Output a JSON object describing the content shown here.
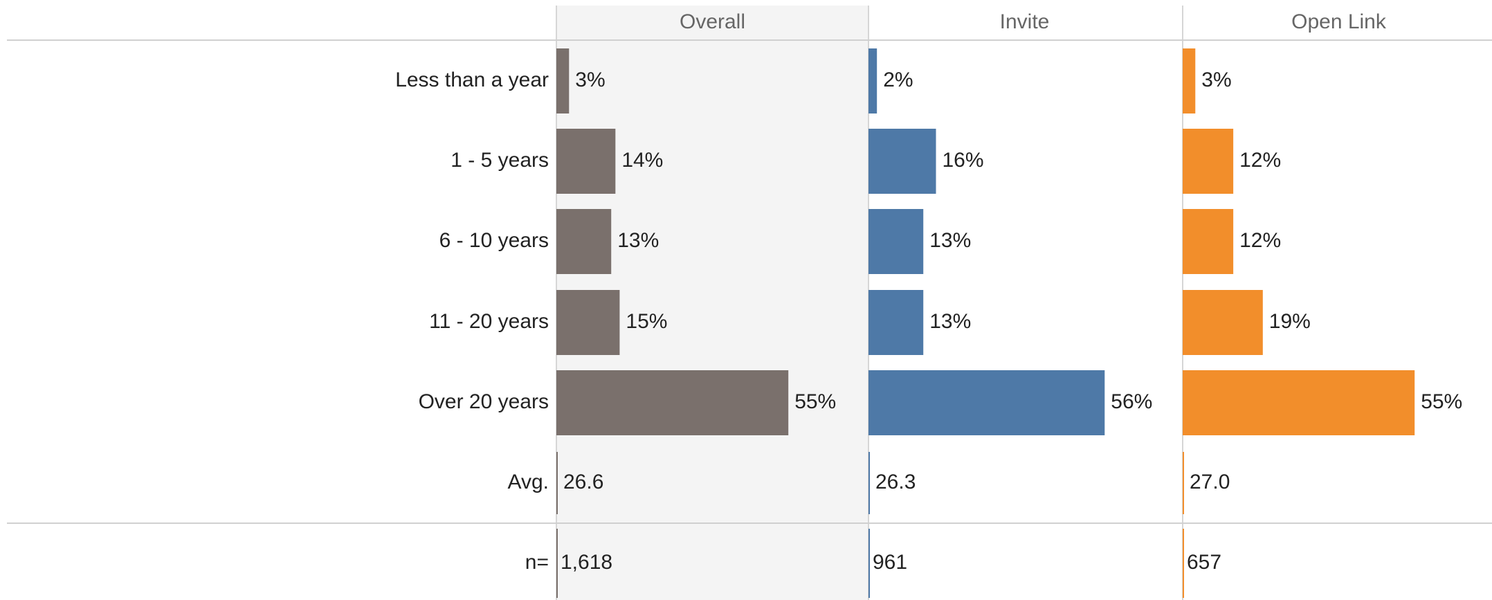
{
  "chart_data": {
    "type": "bar",
    "categories": [
      "Less than a year",
      "1 - 5 years",
      "6 - 10 years",
      "11 - 20 years",
      "Over 20 years"
    ],
    "avg_name": "Avg.",
    "n_name": "n=",
    "xlim": [
      0,
      74
    ],
    "series": [
      {
        "name": "Overall",
        "color": "#7a706c",
        "values": [
          3,
          14,
          13,
          15,
          55
        ],
        "value_labels": [
          "3%",
          "14%",
          "13%",
          "15%",
          "55%"
        ],
        "avg": 26.6,
        "n": {
          "value": 1618,
          "label": "1,618"
        }
      },
      {
        "name": "Invite",
        "color": "#4e79a7",
        "values": [
          2,
          16,
          13,
          13,
          56
        ],
        "value_labels": [
          "2%",
          "16%",
          "13%",
          "13%",
          "56%"
        ],
        "avg": 26.3,
        "n": 961
      },
      {
        "name": "Open Link",
        "color": "#f28e2b",
        "values": [
          3,
          12,
          12,
          19,
          55
        ],
        "value_labels": [
          "3%",
          "12%",
          "12%",
          "19%",
          "55%"
        ],
        "avg": {
          "value": 27.0,
          "label": "27.0"
        },
        "n": 657
      }
    ]
  }
}
